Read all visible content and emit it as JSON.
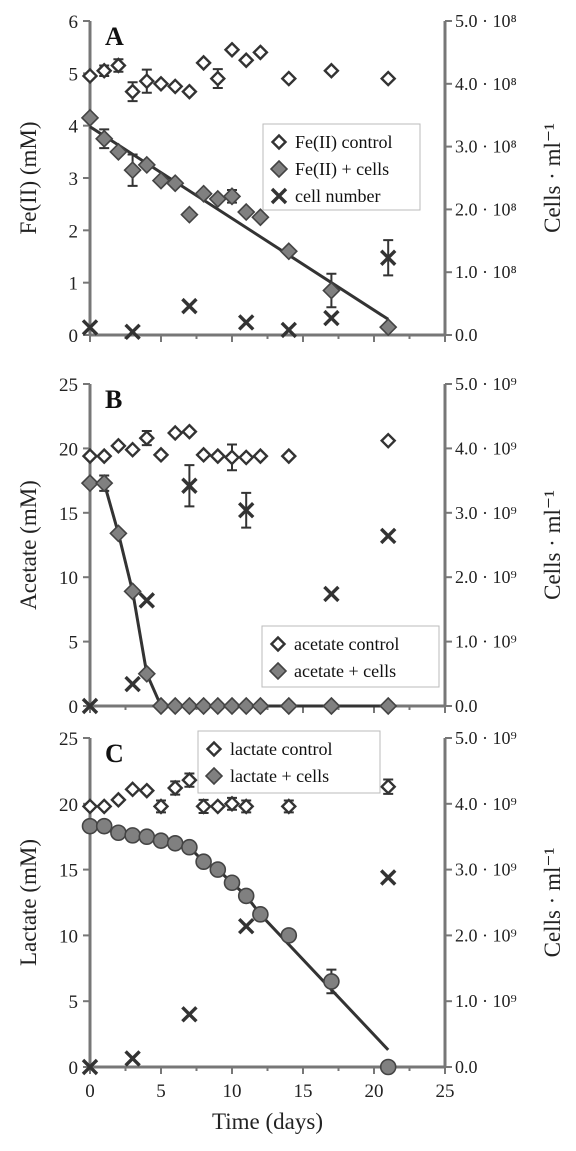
{
  "chart_data": [
    {
      "type": "scatter",
      "panel_label": "A",
      "xlim": [
        0,
        25
      ],
      "ylim": [
        0,
        6
      ],
      "yticks": [
        0,
        1,
        2,
        3,
        4,
        5,
        6
      ],
      "ylabel": "Fe(II) (mM)",
      "y2lim": [
        0,
        500000000.0
      ],
      "y2ticks": [
        "0.0",
        "1.0 · 10⁸",
        "2.0 · 10⁸",
        "3.0 · 10⁸",
        "4.0 · 10⁸",
        "5.0 · 10⁸"
      ],
      "y2label": "Cells · ml⁻¹",
      "legend_position": "right-middle",
      "series": [
        {
          "name": "Fe(II) control",
          "marker": "open-diamond",
          "axis": "left",
          "x": [
            0,
            1,
            2,
            3,
            4,
            5,
            6,
            7,
            8,
            9,
            10,
            11,
            12,
            14,
            17,
            21
          ],
          "y": [
            4.95,
            5.05,
            5.15,
            4.65,
            4.85,
            4.8,
            4.75,
            4.65,
            5.2,
            4.9,
            5.45,
            5.25,
            5.4,
            4.9,
            5.05,
            4.9
          ],
          "err": [
            0,
            0.1,
            0.12,
            0.18,
            0.22,
            0,
            0,
            0,
            0,
            0.18,
            0,
            0,
            0,
            0,
            0,
            0
          ]
        },
        {
          "name": "Fe(II) + cells",
          "marker": "filled-diamond",
          "axis": "left",
          "x": [
            0,
            1,
            2,
            3,
            4,
            5,
            6,
            7,
            8,
            9,
            10,
            11,
            12,
            14,
            17,
            21
          ],
          "y": [
            4.15,
            3.75,
            3.5,
            3.15,
            3.25,
            2.95,
            2.9,
            2.3,
            2.7,
            2.6,
            2.65,
            2.35,
            2.25,
            1.6,
            0.85,
            0.15
          ],
          "err": [
            0,
            0.18,
            0,
            0.3,
            0,
            0,
            0,
            0,
            0,
            0,
            0.12,
            0,
            0,
            0,
            0.32,
            0
          ]
        },
        {
          "name": "cell number",
          "marker": "x",
          "axis": "right",
          "x": [
            0,
            3,
            7,
            11,
            14,
            17,
            21
          ],
          "y": [
            12000000.0,
            5000000.0,
            46000000.0,
            20000000.0,
            8000000.0,
            27000000.0,
            123000000.0
          ],
          "err": [
            0,
            0,
            0,
            0,
            0,
            0,
            28000000.0
          ]
        }
      ],
      "trendline": {
        "x": [
          0,
          21
        ],
        "y": [
          3.98,
          0.3
        ]
      }
    },
    {
      "type": "scatter",
      "panel_label": "B",
      "xlim": [
        0,
        25
      ],
      "ylim": [
        0,
        25
      ],
      "yticks": [
        0,
        5,
        10,
        15,
        20,
        25
      ],
      "ylabel": "Acetate (mM)",
      "y2lim": [
        0,
        5000000000.0
      ],
      "y2ticks": [
        "0.0",
        "1.0 · 10⁹",
        "2.0 · 10⁹",
        "3.0 · 10⁹",
        "4.0 · 10⁹",
        "5.0 · 10⁹"
      ],
      "y2label": "Cells · ml⁻¹",
      "legend_position": "bottom-right",
      "series": [
        {
          "name": "acetate control",
          "marker": "open-diamond",
          "axis": "left",
          "x": [
            0,
            1,
            2,
            3,
            4,
            5,
            6,
            7,
            8,
            9,
            10,
            11,
            12,
            14,
            21
          ],
          "y": [
            19.4,
            19.4,
            20.2,
            19.9,
            20.8,
            19.5,
            21.2,
            21.3,
            19.5,
            19.4,
            19.3,
            19.3,
            19.4,
            19.4,
            20.6
          ],
          "err": [
            0,
            0,
            0,
            0,
            0.55,
            0,
            0,
            0,
            0,
            0,
            1.0,
            0,
            0,
            0,
            0
          ]
        },
        {
          "name": "acetate + cells",
          "marker": "filled-diamond",
          "axis": "left",
          "x": [
            0,
            1,
            2,
            3,
            4,
            5,
            6,
            7,
            8,
            9,
            10,
            11,
            12,
            14,
            17,
            21
          ],
          "y": [
            17.3,
            17.3,
            13.4,
            8.9,
            2.5,
            0,
            0,
            0,
            0,
            0,
            0,
            0,
            0,
            0,
            0,
            0
          ],
          "err": [
            0,
            0.6,
            0,
            0,
            0,
            0,
            0,
            0,
            0,
            0,
            0,
            0,
            0,
            0,
            0,
            0
          ]
        },
        {
          "name": "cell number",
          "marker": "x",
          "axis": "right",
          "x": [
            0,
            3,
            4,
            7,
            11,
            17,
            21
          ],
          "y": [
            0,
            340000000.0,
            1640000000.0,
            3420000000.0,
            3040000000.0,
            1740000000.0,
            2640000000.0
          ],
          "err": [
            0,
            0,
            0,
            320000000.0,
            270000000.0,
            0,
            0
          ]
        }
      ],
      "trendline": {
        "x": [
          0,
          1,
          2,
          3,
          4,
          5,
          21
        ],
        "y": [
          17.3,
          17.3,
          13.4,
          8.9,
          2.5,
          0,
          0
        ]
      }
    },
    {
      "type": "scatter",
      "panel_label": "C",
      "xlim": [
        0,
        25
      ],
      "ylim": [
        0,
        25
      ],
      "xticks": [
        0,
        5,
        10,
        15,
        20,
        25
      ],
      "yticks": [
        0,
        5,
        10,
        15,
        20,
        25
      ],
      "xlabel": "Time (days)",
      "ylabel": "Lactate (mM)",
      "y2lim": [
        0,
        5000000000.0
      ],
      "y2ticks": [
        "0.0",
        "1.0 · 10⁹",
        "2.0 · 10⁹",
        "3.0 · 10⁹",
        "4.0 · 10⁹",
        "5.0 · 10⁹"
      ],
      "y2label": "Cells · ml⁻¹",
      "legend_position": "top-center",
      "series": [
        {
          "name": "lactate control",
          "marker": "open-diamond",
          "axis": "left",
          "x": [
            0,
            1,
            2,
            3,
            4,
            5,
            6,
            7,
            8,
            9,
            10,
            11,
            14,
            21
          ],
          "y": [
            19.8,
            19.8,
            20.3,
            21.1,
            21.0,
            19.8,
            21.2,
            21.8,
            19.8,
            19.8,
            20.0,
            19.8,
            19.8,
            21.3
          ],
          "err": [
            0,
            0,
            0,
            0,
            0,
            0.45,
            0.5,
            0.5,
            0.5,
            0,
            0.45,
            0.45,
            0.45,
            0.55
          ]
        },
        {
          "name": "lactate + cells",
          "marker": "filled-circle",
          "axis": "left",
          "x": [
            0,
            1,
            2,
            3,
            4,
            5,
            6,
            7,
            8,
            9,
            10,
            11,
            12,
            14,
            17,
            21
          ],
          "y": [
            18.3,
            18.3,
            17.8,
            17.6,
            17.5,
            17.2,
            17.0,
            16.7,
            15.6,
            15.0,
            14.0,
            13.0,
            11.6,
            10.0,
            6.5,
            0
          ],
          "err": [
            0,
            0,
            0,
            0,
            0,
            0,
            0,
            0,
            0,
            0,
            0,
            0,
            0,
            0,
            0.9,
            0
          ]
        },
        {
          "name": "cell number",
          "marker": "x",
          "axis": "right",
          "x": [
            0,
            3,
            7,
            11,
            21
          ],
          "y": [
            0,
            130000000.0,
            800000000.0,
            2140000000.0,
            2880000000.0
          ],
          "err": [
            0,
            0,
            0,
            0,
            0
          ]
        }
      ],
      "trendline": {
        "x": [
          0,
          2,
          4,
          6,
          7,
          8,
          9,
          10,
          11,
          12,
          21
        ],
        "y": [
          18.3,
          17.8,
          17.5,
          17.0,
          16.7,
          15.6,
          15.0,
          14.0,
          13.0,
          11.6,
          1.3
        ]
      }
    }
  ]
}
